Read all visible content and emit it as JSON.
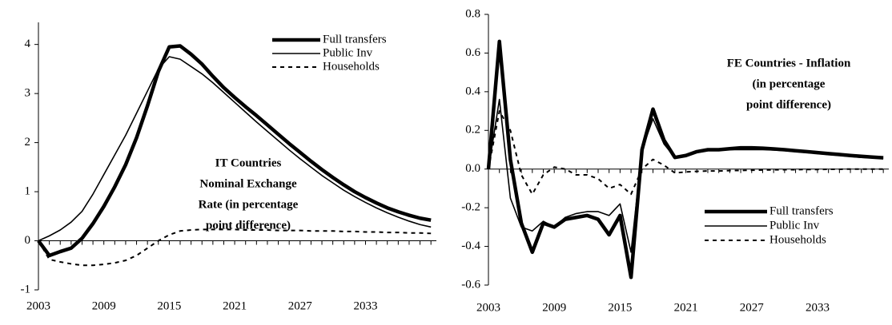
{
  "chart_data": [
    {
      "type": "line",
      "title": [
        "IT Countries",
        "Nominal Exchange",
        "Rate (in percentage",
        "point difference)"
      ],
      "x": [
        2003,
        2004,
        2005,
        2006,
        2007,
        2008,
        2009,
        2010,
        2011,
        2012,
        2013,
        2014,
        2015,
        2016,
        2017,
        2018,
        2019,
        2020,
        2021,
        2022,
        2023,
        2024,
        2025,
        2026,
        2027,
        2028,
        2029,
        2030,
        2031,
        2032,
        2033,
        2034,
        2035,
        2036,
        2037,
        2038,
        2039
      ],
      "xlim": [
        2003,
        2039.5
      ],
      "xticks": [
        2003,
        2009,
        2015,
        2021,
        2027,
        2033
      ],
      "ylim": [
        -1,
        4.45
      ],
      "yticks": [
        -1,
        0,
        1,
        2,
        3,
        4
      ],
      "legend": "top-right",
      "series": [
        {
          "name": "Full transfers",
          "color": "#000000",
          "line_style": "thick",
          "values": [
            0,
            -0.3,
            -0.22,
            -0.15,
            0.05,
            0.35,
            0.7,
            1.1,
            1.55,
            2.1,
            2.75,
            3.45,
            3.95,
            3.97,
            3.8,
            3.6,
            3.35,
            3.12,
            2.92,
            2.73,
            2.55,
            2.36,
            2.17,
            1.98,
            1.8,
            1.62,
            1.45,
            1.29,
            1.14,
            1.0,
            0.88,
            0.77,
            0.67,
            0.59,
            0.52,
            0.46,
            0.42
          ]
        },
        {
          "name": "Public Inv",
          "color": "#000000",
          "line_style": "thin",
          "values": [
            0,
            0.1,
            0.22,
            0.38,
            0.6,
            0.95,
            1.35,
            1.75,
            2.15,
            2.6,
            3.05,
            3.5,
            3.75,
            3.7,
            3.55,
            3.4,
            3.22,
            3.02,
            2.82,
            2.62,
            2.42,
            2.23,
            2.04,
            1.85,
            1.67,
            1.5,
            1.33,
            1.18,
            1.03,
            0.9,
            0.78,
            0.67,
            0.57,
            0.48,
            0.4,
            0.33,
            0.28
          ]
        },
        {
          "name": "Households",
          "color": "#000000",
          "line_style": "dashed",
          "values": [
            0,
            -0.38,
            -0.43,
            -0.47,
            -0.5,
            -0.5,
            -0.48,
            -0.45,
            -0.4,
            -0.3,
            -0.15,
            0,
            0.12,
            0.2,
            0.22,
            0.23,
            0.23,
            0.23,
            0.23,
            0.22,
            0.22,
            0.22,
            0.21,
            0.21,
            0.21,
            0.2,
            0.2,
            0.2,
            0.19,
            0.19,
            0.18,
            0.18,
            0.17,
            0.17,
            0.16,
            0.16,
            0.15
          ]
        }
      ]
    },
    {
      "type": "line",
      "title": [
        "FE Countries - Inflation",
        "(in percentage",
        "point difference)"
      ],
      "x": [
        2003,
        2004,
        2005,
        2006,
        2007,
        2008,
        2009,
        2010,
        2011,
        2012,
        2013,
        2014,
        2015,
        2016,
        2017,
        2018,
        2019,
        2020,
        2021,
        2022,
        2023,
        2024,
        2025,
        2026,
        2027,
        2028,
        2029,
        2030,
        2031,
        2032,
        2033,
        2034,
        2035,
        2036,
        2037,
        2038,
        2039
      ],
      "xlim": [
        2003,
        2039.5
      ],
      "xticks": [
        2003,
        2009,
        2015,
        2021,
        2027,
        2033
      ],
      "ylim": [
        -0.6,
        0.8
      ],
      "yticks": [
        -0.6,
        -0.4,
        -0.2,
        {
          "value": 0,
          "label": "0.0"
        },
        0.2,
        0.4,
        0.6,
        0.8
      ],
      "legend": "bottom-right",
      "series": [
        {
          "name": "Full transfers",
          "color": "#000000",
          "line_style": "thick",
          "values": [
            0,
            0.66,
            0.05,
            -0.28,
            -0.43,
            -0.28,
            -0.3,
            -0.26,
            -0.25,
            -0.24,
            -0.26,
            -0.34,
            -0.24,
            -0.56,
            0.1,
            0.31,
            0.15,
            0.06,
            0.07,
            0.09,
            0.1,
            0.1,
            0.105,
            0.11,
            0.11,
            0.108,
            0.104,
            0.1,
            0.095,
            0.09,
            0.085,
            0.08,
            0.075,
            0.07,
            0.066,
            0.062,
            0.058
          ]
        },
        {
          "name": "Public Inv",
          "color": "#000000",
          "line_style": "thin",
          "values": [
            0,
            0.36,
            -0.15,
            -0.3,
            -0.32,
            -0.27,
            -0.3,
            -0.25,
            -0.23,
            -0.22,
            -0.22,
            -0.24,
            -0.18,
            -0.43,
            0.1,
            0.26,
            0.13,
            0.06,
            0.07,
            0.085,
            0.095,
            0.097,
            0.1,
            0.1,
            0.1,
            0.1,
            0.098,
            0.095,
            0.09,
            0.085,
            0.08,
            0.075,
            0.07,
            0.065,
            0.06,
            0.058,
            0.055
          ]
        },
        {
          "name": "Households",
          "color": "#000000",
          "line_style": "dashed",
          "values": [
            0,
            0.3,
            0.2,
            -0.03,
            -0.13,
            -0.03,
            0.01,
            0,
            -0.03,
            -0.03,
            -0.05,
            -0.1,
            -0.08,
            -0.13,
            0,
            0.05,
            0.02,
            -0.02,
            -0.015,
            -0.012,
            -0.01,
            -0.01,
            -0.008,
            -0.007,
            -0.006,
            -0.005,
            -0.004,
            -0.003,
            -0.003,
            -0.002,
            -0.002,
            -0.001,
            -0.001,
            0,
            0,
            0,
            0
          ]
        }
      ]
    }
  ]
}
